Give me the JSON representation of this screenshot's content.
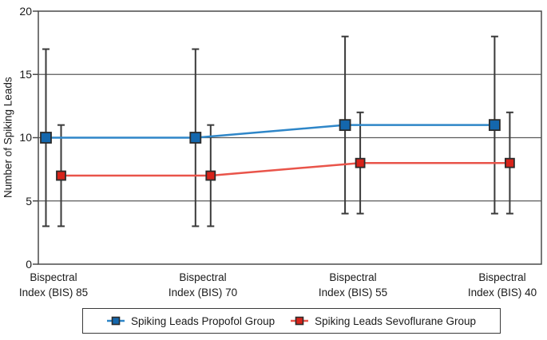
{
  "chart_data": {
    "type": "line",
    "title": "",
    "xlabel": "",
    "ylabel": "Number of Spiking Leads",
    "ylim": [
      0,
      20
    ],
    "yticks": [
      0,
      5,
      10,
      15,
      20
    ],
    "grid": "horizontal",
    "legend_position": "bottom-boxed",
    "categories": [
      "Bispectral Index (BIS) 85",
      "Bispectral Index (BIS) 70",
      "Bispectral Index (BIS) 55",
      "Bispectral Index (BIS) 40"
    ],
    "category_labels": [
      {
        "line1": "Bispectral",
        "line2": "Index (BIS) 85"
      },
      {
        "line1": "Bispectral",
        "line2": "Index (BIS) 70"
      },
      {
        "line1": "Bispectral",
        "line2": "Index (BIS) 55"
      },
      {
        "line1": "Bispectral",
        "line2": "Index (BIS) 40"
      }
    ],
    "series": [
      {
        "name": "Spiking Leads Propofol Group",
        "marker": "square",
        "line_color": "#2e86c8",
        "marker_color": "#1467ad",
        "values": [
          10,
          10,
          11,
          11
        ],
        "error_low": [
          3,
          3,
          4,
          4
        ],
        "error_high": [
          17,
          17,
          18,
          18
        ]
      },
      {
        "name": "Spiking Leads Sevoflurane Group",
        "marker": "square",
        "line_color": "#e9544a",
        "marker_color": "#d7231a",
        "values": [
          7,
          7,
          8,
          8
        ],
        "error_low": [
          3,
          3,
          4,
          4
        ],
        "error_high": [
          11,
          11,
          12,
          12
        ]
      }
    ],
    "error_bar_color": "#3a3a3a",
    "axis_color": "#4a4a4a",
    "gridline_color": "#5a5a5a"
  }
}
